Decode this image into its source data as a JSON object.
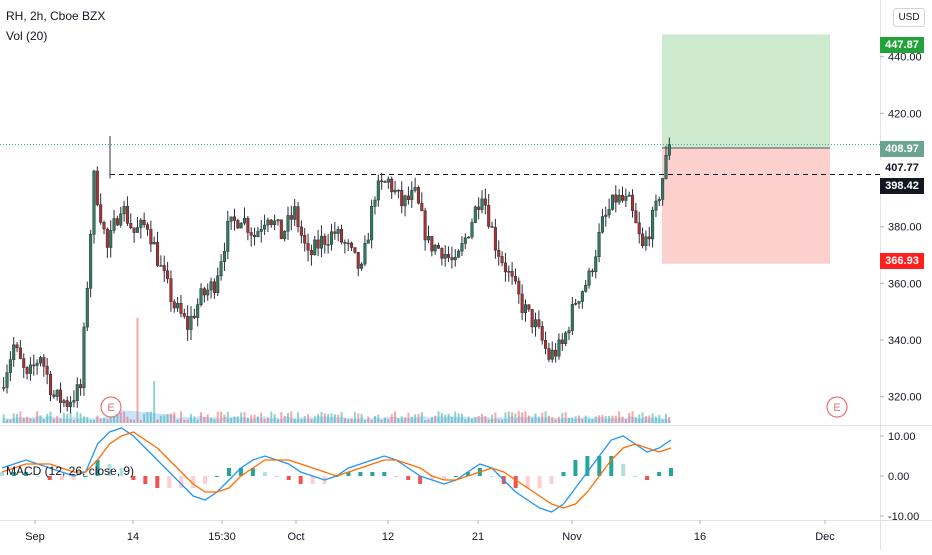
{
  "header": {
    "symbol_title": "RH, 2h, Cboe BZX",
    "volume_label": "Vol (20)",
    "macd_label": "MACD (12, 26, close, 9)",
    "currency_button": "USD"
  },
  "price_tags": {
    "target": "447.87",
    "last": "408.97",
    "stop_line": "407.77",
    "resistance": "398.42",
    "stop": "366.93"
  },
  "colors": {
    "up": "#26a69a",
    "down": "#ef5350",
    "candle_up_body": "#2e7d5b",
    "candle_down_body": "#b0312f",
    "target_zone": "#4caf50",
    "stop_zone": "#f44336",
    "macd_line": "#2196f3",
    "signal_line": "#ff6d00",
    "volume": "#4da6ff",
    "earnings": "#e57373"
  },
  "chart_data": [
    {
      "type": "candlestick",
      "title": "RH, 2h, Cboe BZX",
      "y_axis_ticks": [
        "320.00",
        "340.00",
        "360.00",
        "380.00",
        "400.00",
        "420.00",
        "440.00"
      ],
      "x_axis_ticks": [
        "Sep",
        "14",
        "15:30",
        "Oct",
        "12",
        "21",
        "Nov",
        "16",
        "Dec"
      ],
      "ylim": [
        310,
        460
      ],
      "close_path": [
        {
          "date": "Sep 1",
          "value": 323
        },
        {
          "date": "Sep 2",
          "value": 338
        },
        {
          "date": "Sep 3",
          "value": 326
        },
        {
          "date": "Sep 4",
          "value": 335
        },
        {
          "date": "Sep 8",
          "value": 320
        },
        {
          "date": "Sep 9",
          "value": 318
        },
        {
          "date": "Sep 10",
          "value": 323
        },
        {
          "date": "Sep 11",
          "value": 397
        },
        {
          "date": "Sep 14",
          "value": 372
        },
        {
          "date": "Sep 15",
          "value": 388
        },
        {
          "date": "Sep 16",
          "value": 378
        },
        {
          "date": "Sep 17",
          "value": 381
        },
        {
          "date": "Sep 18",
          "value": 365
        },
        {
          "date": "Sep 21",
          "value": 352
        },
        {
          "date": "Sep 22",
          "value": 345
        },
        {
          "date": "Sep 23",
          "value": 355
        },
        {
          "date": "Sep 24",
          "value": 360
        },
        {
          "date": "Sep 25",
          "value": 379
        },
        {
          "date": "Sep 28",
          "value": 384
        },
        {
          "date": "Sep 29",
          "value": 377
        },
        {
          "date": "Sep 30",
          "value": 385
        },
        {
          "date": "Oct 1",
          "value": 377
        },
        {
          "date": "Oct 2",
          "value": 385
        },
        {
          "date": "Oct 5",
          "value": 369
        },
        {
          "date": "Oct 6",
          "value": 375
        },
        {
          "date": "Oct 7",
          "value": 378
        },
        {
          "date": "Oct 8",
          "value": 372
        },
        {
          "date": "Oct 9",
          "value": 364
        },
        {
          "date": "Oct 12",
          "value": 392
        },
        {
          "date": "Oct 13",
          "value": 396
        },
        {
          "date": "Oct 14",
          "value": 388
        },
        {
          "date": "Oct 15",
          "value": 391
        },
        {
          "date": "Oct 16",
          "value": 374
        },
        {
          "date": "Oct 19",
          "value": 372
        },
        {
          "date": "Oct 20",
          "value": 366
        },
        {
          "date": "Oct 21",
          "value": 379
        },
        {
          "date": "Oct 22",
          "value": 393
        },
        {
          "date": "Oct 23",
          "value": 374
        },
        {
          "date": "Oct 26",
          "value": 363
        },
        {
          "date": "Oct 27",
          "value": 352
        },
        {
          "date": "Oct 28",
          "value": 345
        },
        {
          "date": "Oct 29",
          "value": 334
        },
        {
          "date": "Oct 30",
          "value": 338
        },
        {
          "date": "Nov 2",
          "value": 354
        },
        {
          "date": "Nov 3",
          "value": 362
        },
        {
          "date": "Nov 4",
          "value": 381
        },
        {
          "date": "Nov 5",
          "value": 390
        },
        {
          "date": "Nov 6",
          "value": 388
        },
        {
          "date": "Nov 9",
          "value": 372
        },
        {
          "date": "Nov 10",
          "value": 386
        },
        {
          "date": "Nov 11",
          "value": 408.97
        }
      ],
      "horizontal_levels": [
        {
          "label": "398.42",
          "value": 398.42,
          "style": "dashed"
        },
        {
          "label": "408.97",
          "value": 408.97,
          "style": "dotted"
        }
      ],
      "position_tool": {
        "entry": 407.77,
        "target": 447.87,
        "stop": 366.93
      }
    },
    {
      "type": "bar",
      "title": "Vol (20)",
      "note": "volume histogram with 20-period moving average area",
      "earnings_markers": [
        "E",
        "E"
      ]
    },
    {
      "type": "line",
      "title": "MACD (12, 26, close, 9)",
      "y_axis_ticks": [
        "10.00",
        "0.00",
        "-10.00"
      ],
      "ylim": [
        -11,
        12
      ],
      "series": [
        {
          "values": [
            2,
            3,
            4,
            3,
            2,
            1,
            0,
            1,
            8,
            11,
            12,
            10,
            7,
            4,
            1,
            -2,
            -5,
            -6,
            -4,
            -1,
            2,
            4,
            5,
            4,
            3,
            1,
            0,
            -1,
            0,
            2,
            3,
            4,
            5,
            4,
            2,
            0,
            -1,
            -2,
            -1,
            1,
            3,
            2,
            -1,
            -4,
            -6,
            -8,
            -9,
            -7,
            -3,
            1,
            5,
            9,
            10,
            8,
            6,
            7,
            9
          ]
        },
        {
          "values": [
            1,
            2,
            3,
            3,
            3,
            2,
            1,
            1,
            4,
            8,
            10,
            11,
            9,
            7,
            4,
            1,
            -2,
            -4,
            -4,
            -3,
            0,
            2,
            4,
            4,
            4,
            3,
            2,
            1,
            0,
            1,
            2,
            3,
            4,
            4,
            3,
            2,
            0,
            -1,
            -1,
            0,
            1,
            2,
            1,
            -1,
            -3,
            -5,
            -7,
            -8,
            -7,
            -4,
            0,
            4,
            7,
            8,
            7,
            6,
            7
          ]
        }
      ]
    }
  ]
}
